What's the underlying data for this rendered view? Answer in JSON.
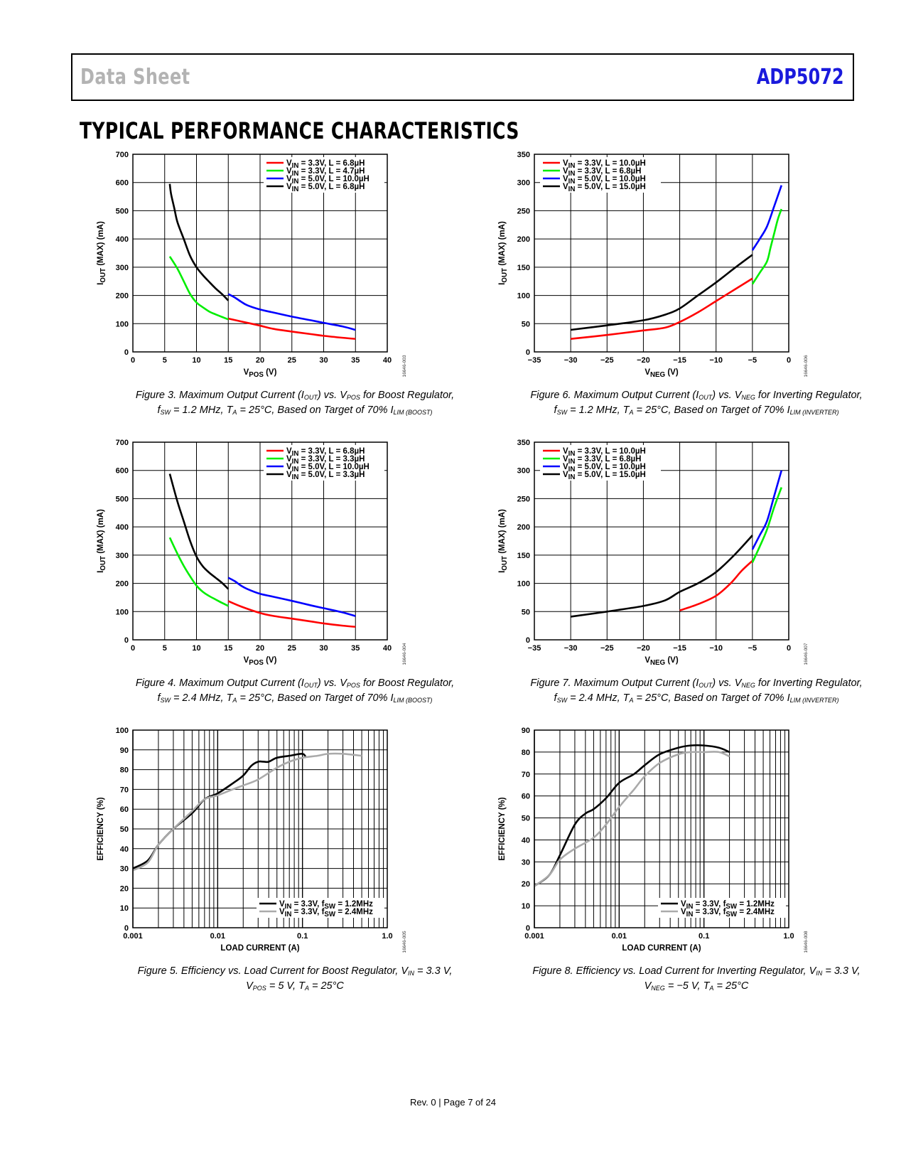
{
  "header": {
    "left": "Data Sheet",
    "right": "ADP5072",
    "right_color": "#1a1adc"
  },
  "section_title": "TYPICAL PERFORMANCE CHARACTERISTICS",
  "footer": "Rev. 0 | Page 7 of 24",
  "figures": [
    {
      "caption_line1": "Figure 3. Maximum Output Current (IOUT) vs. VPOS for Boost Regulator,",
      "caption_line2": "fSW = 1.2 MHz, TA = 25°C, Based on Target of 70% ILIM (BOOST)",
      "fig_id": "16646-003"
    },
    {
      "caption_line1": "Figure 4. Maximum Output Current (IOUT) vs. VPOS for Boost Regulator,",
      "caption_line2": "fSW = 2.4 MHz, TA = 25°C, Based on Target of 70% ILIM (BOOST)",
      "fig_id": "16646-004"
    },
    {
      "caption_line1": "Figure 5. Efficiency vs. Load Current for Boost Regulator, VIN = 3.3 V,",
      "caption_line2": "VPOS = 5 V, TA = 25°C",
      "fig_id": "16646-005"
    },
    {
      "caption_line1": "Figure 6. Maximum Output Current (IOUT) vs. VNEG for Inverting Regulator,",
      "caption_line2": "fSW = 1.2 MHz, TA = 25°C, Based on Target of 70% ILIM (INVERTER)",
      "fig_id": "16646-006"
    },
    {
      "caption_line1": "Figure 7. Maximum Output Current (IOUT) vs. VNEG for Inverting Regulator,",
      "caption_line2": "fSW = 2.4 MHz, TA = 25°C, Based on Target of 70% ILIM (INVERTER)",
      "fig_id": "16646-007"
    },
    {
      "caption_line1": "Figure 8. Efficiency vs. Load Current for Inverting Regulator, VIN = 3.3 V,",
      "caption_line2": "VNEG = −5 V, TA = 25°C",
      "fig_id": "16646-008"
    }
  ],
  "chart_data": [
    {
      "id": "fig3",
      "type": "line",
      "xscale": "linear",
      "xlabel": "VPOS (V)",
      "ylabel": "IOUT (MAX) (mA)",
      "xlim": [
        0,
        40
      ],
      "ylim": [
        0,
        700
      ],
      "xticks": [
        0,
        5,
        10,
        15,
        20,
        25,
        30,
        35,
        40
      ],
      "yticks": [
        0,
        100,
        200,
        300,
        400,
        500,
        600,
        700
      ],
      "xtick_labels": [
        "0",
        "5",
        "10",
        "15",
        "20",
        "25",
        "30",
        "35",
        "40"
      ],
      "ytick_labels": [
        "0",
        "100",
        "200",
        "300",
        "400",
        "500",
        "600",
        "700"
      ],
      "grid": true,
      "legend_position": "top-right",
      "series": [
        {
          "name": "VIN = 3.3V, L = 6.8µH",
          "color": "#ff0000",
          "x": [
            15,
            17,
            20,
            22,
            25,
            28,
            30,
            33,
            35
          ],
          "y": [
            118,
            108,
            93,
            82,
            72,
            63,
            57,
            50,
            46
          ]
        },
        {
          "name": "VIN = 3.3V, L = 4.7µH",
          "color": "#00ee00",
          "x": [
            5.8,
            7,
            8,
            9,
            10,
            11,
            12,
            13,
            14,
            15
          ],
          "y": [
            338,
            295,
            250,
            205,
            175,
            158,
            143,
            133,
            124,
            115
          ]
        },
        {
          "name": "VIN = 5.0V, L = 10.0µH",
          "color": "#0000ff",
          "x": [
            15,
            16,
            17,
            18,
            20,
            22,
            25,
            28,
            30,
            33,
            35
          ],
          "y": [
            205,
            193,
            178,
            165,
            150,
            140,
            125,
            112,
            103,
            90,
            78
          ]
        },
        {
          "name": "VIN = 5.0V, L = 6.8µH",
          "color": "#000000",
          "x": [
            5.8,
            6,
            6.5,
            7,
            8,
            9,
            10,
            11,
            12,
            13,
            14,
            15
          ],
          "y": [
            595,
            560,
            510,
            460,
            400,
            340,
            300,
            272,
            248,
            225,
            205,
            182
          ]
        }
      ]
    },
    {
      "id": "fig4",
      "type": "line",
      "xscale": "linear",
      "xlabel": "VPOS (V)",
      "ylabel": "IOUT (MAX) (mA)",
      "xlim": [
        0,
        40
      ],
      "ylim": [
        0,
        700
      ],
      "xticks": [
        0,
        5,
        10,
        15,
        20,
        25,
        30,
        35,
        40
      ],
      "yticks": [
        0,
        100,
        200,
        300,
        400,
        500,
        600,
        700
      ],
      "xtick_labels": [
        "0",
        "5",
        "10",
        "15",
        "20",
        "25",
        "30",
        "35",
        "40"
      ],
      "ytick_labels": [
        "0",
        "100",
        "200",
        "300",
        "400",
        "500",
        "600",
        "700"
      ],
      "grid": true,
      "legend_position": "top-right",
      "series": [
        {
          "name": "VIN = 3.3V, L = 6.8µH",
          "color": "#ff0000",
          "x": [
            15,
            17,
            20,
            22,
            25,
            28,
            30,
            33,
            35
          ],
          "y": [
            137,
            118,
            95,
            85,
            75,
            65,
            58,
            50,
            46
          ]
        },
        {
          "name": "VIN = 3.3V, L = 3.3µH",
          "color": "#00ee00",
          "x": [
            5.8,
            7,
            8,
            9,
            10,
            11,
            12,
            13,
            14,
            15
          ],
          "y": [
            362,
            305,
            262,
            225,
            192,
            170,
            155,
            143,
            131,
            120
          ]
        },
        {
          "name": "VIN = 5.0V, L = 10.0µH",
          "color": "#0000ff",
          "x": [
            15,
            16,
            17,
            18,
            20,
            22,
            25,
            28,
            30,
            33,
            35
          ],
          "y": [
            220,
            208,
            192,
            180,
            163,
            153,
            138,
            122,
            112,
            97,
            84
          ]
        },
        {
          "name": "VIN = 5.0V, L = 3.3µH",
          "color": "#000000",
          "x": [
            5.8,
            7,
            8,
            9,
            10,
            11,
            12,
            13,
            14,
            15
          ],
          "y": [
            588,
            490,
            420,
            350,
            295,
            260,
            238,
            220,
            202,
            180
          ]
        }
      ]
    },
    {
      "id": "fig5",
      "type": "line",
      "xscale": "log",
      "xlabel": "LOAD CURRENT (A)",
      "ylabel": "EFFICIENCY (%)",
      "xlim": [
        0.001,
        1.0
      ],
      "ylim": [
        0,
        100
      ],
      "xticks": [
        0.001,
        0.01,
        0.1,
        1.0
      ],
      "yticks": [
        0,
        10,
        20,
        30,
        40,
        50,
        60,
        70,
        80,
        90,
        100
      ],
      "xtick_labels": [
        "0.001",
        "0.01",
        "0.1",
        "1.0"
      ],
      "ytick_labels": [
        "0",
        "10",
        "20",
        "30",
        "40",
        "50",
        "60",
        "70",
        "80",
        "90",
        "100"
      ],
      "grid": true,
      "legend_position": "bottom-right",
      "series": [
        {
          "name": "VIN = 3.3V, fSW = 1.2MHz",
          "color": "#000000",
          "x": [
            0.001,
            0.0015,
            0.002,
            0.003,
            0.005,
            0.007,
            0.01,
            0.015,
            0.02,
            0.025,
            0.03,
            0.035,
            0.04,
            0.05,
            0.07,
            0.1,
            0.11
          ],
          "y": [
            30,
            34,
            42,
            50,
            58,
            65,
            68,
            73,
            77,
            82,
            84,
            84,
            84,
            86,
            87,
            88,
            86
          ]
        },
        {
          "name": "VIN = 3.3V, fSW = 2.4MHz",
          "color": "#aaaaaa",
          "x": [
            0.001,
            0.0015,
            0.002,
            0.003,
            0.005,
            0.007,
            0.01,
            0.015,
            0.02,
            0.03,
            0.05,
            0.07,
            0.1,
            0.15,
            0.2,
            0.3,
            0.5
          ],
          "y": [
            29,
            33,
            42,
            50,
            59,
            65,
            67,
            70,
            72,
            75,
            81,
            84,
            86,
            87,
            88,
            88,
            87
          ]
        }
      ]
    },
    {
      "id": "fig6",
      "type": "line",
      "xscale": "linear",
      "xlabel": "VNEG (V)",
      "ylabel": "IOUT (MAX) (mA)",
      "xlim": [
        -35,
        0
      ],
      "ylim": [
        0,
        350
      ],
      "xticks": [
        -35,
        -30,
        -25,
        -20,
        -15,
        -10,
        -5,
        0
      ],
      "yticks": [
        0,
        50,
        100,
        150,
        200,
        250,
        300,
        350
      ],
      "xtick_labels": [
        "−35",
        "−30",
        "−25",
        "−20",
        "−15",
        "−10",
        "−5",
        "0"
      ],
      "ytick_labels": [
        "0",
        "50",
        "100",
        "150",
        "200",
        "250",
        "300",
        "350"
      ],
      "grid": true,
      "legend_position": "top-left",
      "series": [
        {
          "name": "VIN = 3.3V, L = 10.0µH",
          "color": "#ff0000",
          "x": [
            -30,
            -25,
            -20,
            -17,
            -15,
            -12.5,
            -10,
            -7.5,
            -5
          ],
          "y": [
            23,
            30,
            38,
            43,
            53,
            70,
            90,
            110,
            130
          ]
        },
        {
          "name": "VIN = 3.3V, L = 6.8µH",
          "color": "#00ee00",
          "x": [
            -5,
            -4,
            -3,
            -2.5,
            -2,
            -1.5,
            -1
          ],
          "y": [
            120,
            140,
            160,
            185,
            210,
            235,
            253
          ]
        },
        {
          "name": "VIN = 5.0V, L = 10.0µH",
          "color": "#0000ff",
          "x": [
            -5,
            -4,
            -3,
            -2,
            -1
          ],
          "y": [
            180,
            200,
            222,
            258,
            295
          ]
        },
        {
          "name": "VIN = 5.0V, L = 15.0µH",
          "color": "#000000",
          "x": [
            -30,
            -25,
            -20,
            -17,
            -15,
            -12.5,
            -10,
            -7.5,
            -5
          ],
          "y": [
            39,
            47,
            56,
            66,
            77,
            100,
            123,
            148,
            172
          ]
        }
      ]
    },
    {
      "id": "fig7",
      "type": "line",
      "xscale": "linear",
      "xlabel": "VNEG (V)",
      "ylabel": "IOUT (MAX) (mA)",
      "xlim": [
        -35,
        0
      ],
      "ylim": [
        0,
        350
      ],
      "xticks": [
        -35,
        -30,
        -25,
        -20,
        -15,
        -10,
        -5,
        0
      ],
      "yticks": [
        0,
        50,
        100,
        150,
        200,
        250,
        300,
        350
      ],
      "xtick_labels": [
        "−35",
        "−30",
        "−25",
        "−20",
        "−15",
        "−10",
        "−5",
        "0"
      ],
      "ytick_labels": [
        "0",
        "50",
        "100",
        "150",
        "200",
        "250",
        "300",
        "350"
      ],
      "grid": true,
      "legend_position": "top-left",
      "series": [
        {
          "name": "VIN = 3.3V, L = 10.0µH",
          "color": "#ff0000",
          "x": [
            -15,
            -12.5,
            -10,
            -8,
            -6.5,
            -5
          ],
          "y": [
            52,
            63,
            78,
            100,
            122,
            140
          ]
        },
        {
          "name": "VIN = 3.3V, L = 6.8µH",
          "color": "#00ee00",
          "x": [
            -5,
            -4,
            -3,
            -2,
            -1
          ],
          "y": [
            137,
            165,
            195,
            235,
            270
          ]
        },
        {
          "name": "VIN = 5.0V, L = 10.0µH",
          "color": "#0000ff",
          "x": [
            -5,
            -4,
            -3,
            -2,
            -1
          ],
          "y": [
            160,
            185,
            210,
            255,
            300
          ]
        },
        {
          "name": "VIN = 5.0V, L = 15.0µH",
          "color": "#000000",
          "x": [
            -30,
            -25,
            -20,
            -17,
            -15,
            -12.5,
            -10,
            -7.5,
            -5
          ],
          "y": [
            41,
            50,
            60,
            70,
            85,
            100,
            120,
            150,
            185
          ]
        }
      ]
    },
    {
      "id": "fig8",
      "type": "line",
      "xscale": "log",
      "xlabel": "LOAD CURRENT (A)",
      "ylabel": "EFFICIENCY (%)",
      "xlim": [
        0.001,
        1.0
      ],
      "ylim": [
        0,
        90
      ],
      "xticks": [
        0.001,
        0.01,
        0.1,
        1.0
      ],
      "yticks": [
        0,
        10,
        20,
        30,
        40,
        50,
        60,
        70,
        80,
        90
      ],
      "xtick_labels": [
        "0.001",
        "0.01",
        "0.1",
        "1.0"
      ],
      "ytick_labels": [
        "0",
        "10",
        "20",
        "30",
        "40",
        "50",
        "60",
        "70",
        "80",
        "90"
      ],
      "grid": true,
      "legend_position": "bottom-right",
      "series": [
        {
          "name": "VIN = 3.3V, fSW = 1.2MHz",
          "color": "#000000",
          "x": [
            0.001,
            0.0015,
            0.002,
            0.003,
            0.004,
            0.005,
            0.007,
            0.01,
            0.015,
            0.02,
            0.03,
            0.05,
            0.07,
            0.1,
            0.15,
            0.2
          ],
          "y": [
            19,
            24,
            33,
            47,
            52,
            54,
            59,
            66,
            70,
            74,
            79,
            82,
            83,
            83,
            82,
            80
          ]
        },
        {
          "name": "VIN = 3.3V, fSW = 2.4MHz",
          "color": "#aaaaaa",
          "x": [
            0.001,
            0.0015,
            0.002,
            0.003,
            0.005,
            0.007,
            0.01,
            0.015,
            0.02,
            0.03,
            0.05,
            0.07,
            0.1,
            0.15,
            0.2
          ],
          "y": [
            19,
            24,
            31,
            36,
            41,
            47,
            55,
            63,
            69,
            75,
            79,
            80,
            80,
            80,
            78
          ]
        }
      ]
    }
  ]
}
